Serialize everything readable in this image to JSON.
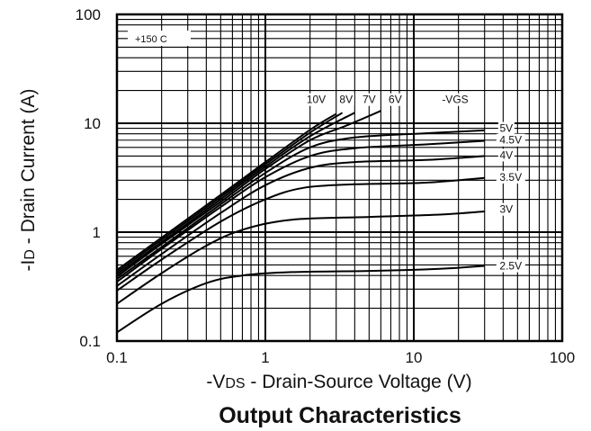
{
  "chart_data": {
    "type": "line",
    "title": "Output Characteristics",
    "xlabel_prefix": "-V",
    "xlabel_sub": "DS",
    "xlabel_rest": " - Drain-Source Voltage (V)",
    "ylabel_prefix": "-I",
    "ylabel_sub": "D",
    "ylabel_rest": " - Drain Current (A)",
    "x_scale": "log",
    "y_scale": "log",
    "xlim": [
      0.1,
      100
    ],
    "ylim": [
      0.1,
      100
    ],
    "x_ticks": [
      {
        "value": 0.1,
        "label": "0.1"
      },
      {
        "value": 1,
        "label": "1"
      },
      {
        "value": 10,
        "label": "10"
      },
      {
        "value": 100,
        "label": "100"
      }
    ],
    "y_ticks": [
      {
        "value": 0.1,
        "label": "0.1"
      },
      {
        "value": 1,
        "label": "1"
      },
      {
        "value": 10,
        "label": "10"
      },
      {
        "value": 100,
        "label": "100"
      }
    ],
    "grid": true,
    "annotation": "+150 C",
    "vgs_header": "-VGS",
    "series": [
      {
        "name": "2.5V",
        "points": [
          [
            0.1,
            0.12
          ],
          [
            0.2,
            0.22
          ],
          [
            0.4,
            0.34
          ],
          [
            0.7,
            0.4
          ],
          [
            1.5,
            0.43
          ],
          [
            5,
            0.44
          ],
          [
            15,
            0.46
          ],
          [
            30,
            0.49
          ]
        ]
      },
      {
        "name": "3V",
        "points": [
          [
            0.1,
            0.22
          ],
          [
            0.2,
            0.42
          ],
          [
            0.4,
            0.75
          ],
          [
            0.7,
            1.05
          ],
          [
            1.5,
            1.3
          ],
          [
            5,
            1.38
          ],
          [
            15,
            1.45
          ],
          [
            30,
            1.55
          ]
        ]
      },
      {
        "name": "3.5V",
        "points": [
          [
            0.1,
            0.29
          ],
          [
            0.2,
            0.56
          ],
          [
            0.5,
            1.25
          ],
          [
            1,
            2.0
          ],
          [
            1.8,
            2.55
          ],
          [
            4,
            2.75
          ],
          [
            12,
            2.85
          ],
          [
            30,
            3.15
          ]
        ]
      },
      {
        "name": "4V",
        "points": [
          [
            0.1,
            0.32
          ],
          [
            0.2,
            0.63
          ],
          [
            0.5,
            1.5
          ],
          [
            1,
            2.7
          ],
          [
            2,
            3.9
          ],
          [
            4,
            4.4
          ],
          [
            12,
            4.6
          ],
          [
            30,
            5.0
          ]
        ]
      },
      {
        "name": "4.5V",
        "points": [
          [
            0.1,
            0.35
          ],
          [
            0.2,
            0.7
          ],
          [
            0.5,
            1.7
          ],
          [
            1,
            3.2
          ],
          [
            2,
            5.0
          ],
          [
            4,
            5.9
          ],
          [
            12,
            6.4
          ],
          [
            30,
            6.9
          ]
        ]
      },
      {
        "name": "5V",
        "points": [
          [
            0.1,
            0.37
          ],
          [
            0.2,
            0.73
          ],
          [
            0.5,
            1.8
          ],
          [
            1,
            3.5
          ],
          [
            2,
            6.0
          ],
          [
            4,
            7.4
          ],
          [
            12,
            8.1
          ],
          [
            30,
            8.6
          ]
        ]
      },
      {
        "name": "6V",
        "points": [
          [
            0.1,
            0.39
          ],
          [
            0.2,
            0.78
          ],
          [
            0.5,
            1.9
          ],
          [
            1,
            3.8
          ],
          [
            2,
            7.0
          ],
          [
            3.5,
            9.5
          ],
          [
            6,
            13.0
          ]
        ]
      },
      {
        "name": "7V",
        "points": [
          [
            0.1,
            0.41
          ],
          [
            0.2,
            0.81
          ],
          [
            0.5,
            2.0
          ],
          [
            1,
            4.0
          ],
          [
            2,
            7.6
          ],
          [
            4,
            12.5
          ]
        ]
      },
      {
        "name": "8V",
        "points": [
          [
            0.1,
            0.43
          ],
          [
            0.2,
            0.85
          ],
          [
            0.5,
            2.1
          ],
          [
            1,
            4.2
          ],
          [
            2,
            8.2
          ],
          [
            3.3,
            12.5
          ]
        ]
      },
      {
        "name": "10V",
        "points": [
          [
            0.1,
            0.45
          ],
          [
            0.2,
            0.89
          ],
          [
            0.5,
            2.2
          ],
          [
            1,
            4.4
          ],
          [
            2,
            8.7
          ],
          [
            3,
            12.2
          ]
        ]
      }
    ],
    "labels": [
      {
        "text": "10V",
        "x": 2.2,
        "y": 16.5
      },
      {
        "text": "8V",
        "x": 3.5,
        "y": 16.5
      },
      {
        "text": "7V",
        "x": 5.0,
        "y": 16.5
      },
      {
        "text": "6V",
        "x": 7.5,
        "y": 16.5
      },
      {
        "text": "-VGS",
        "x": 19.0,
        "y": 16.5
      },
      {
        "text": "5V",
        "x": 42,
        "y": 9.0
      },
      {
        "text": "4.5V",
        "x": 45,
        "y": 7.0
      },
      {
        "text": "4V",
        "x": 42,
        "y": 5.1
      },
      {
        "text": "3.5V",
        "x": 45,
        "y": 3.2
      },
      {
        "text": "3V",
        "x": 42,
        "y": 1.62
      },
      {
        "text": "2.5V",
        "x": 45,
        "y": 0.49
      }
    ]
  }
}
